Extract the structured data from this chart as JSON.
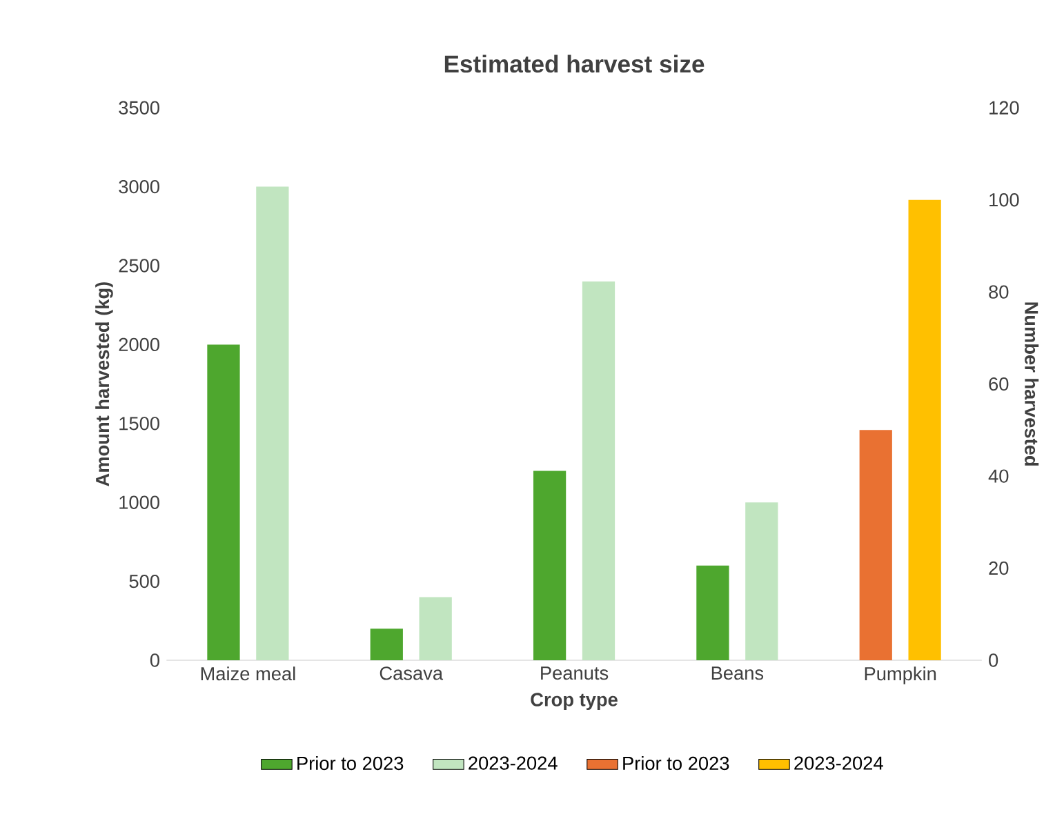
{
  "chart_data": {
    "type": "bar",
    "title": "Estimated harvest size",
    "xlabel": "Crop type",
    "ylabel": "Amount harvested (kg)",
    "y2label": "Number harvested",
    "categories": [
      "Maize meal",
      "Casava",
      "Peanuts",
      "Beans",
      "Pumpkin"
    ],
    "series": [
      {
        "name": "Prior to 2023",
        "color": "#4ea72e",
        "values": [
          2000,
          200,
          1200,
          600,
          null
        ]
      },
      {
        "name": "2023-2024",
        "color": "#c1e5c0",
        "values": [
          3000,
          400,
          2400,
          1000,
          null
        ]
      },
      {
        "name": "Prior to 2023",
        "color": "#e97132",
        "axis": "y2",
        "values": [
          null,
          null,
          null,
          null,
          50
        ]
      },
      {
        "name": "2023-2024",
        "color": "#ffc000",
        "axis": "y2",
        "values": [
          null,
          null,
          null,
          null,
          100
        ]
      }
    ],
    "ylim": [
      0,
      3500
    ],
    "yticks": [
      0,
      500,
      1000,
      1500,
      2000,
      2500,
      3000,
      3500
    ],
    "y2lim": [
      0,
      120
    ],
    "y2ticks": [
      0,
      20,
      40,
      60,
      80,
      100,
      120
    ],
    "legend": "bottom"
  }
}
